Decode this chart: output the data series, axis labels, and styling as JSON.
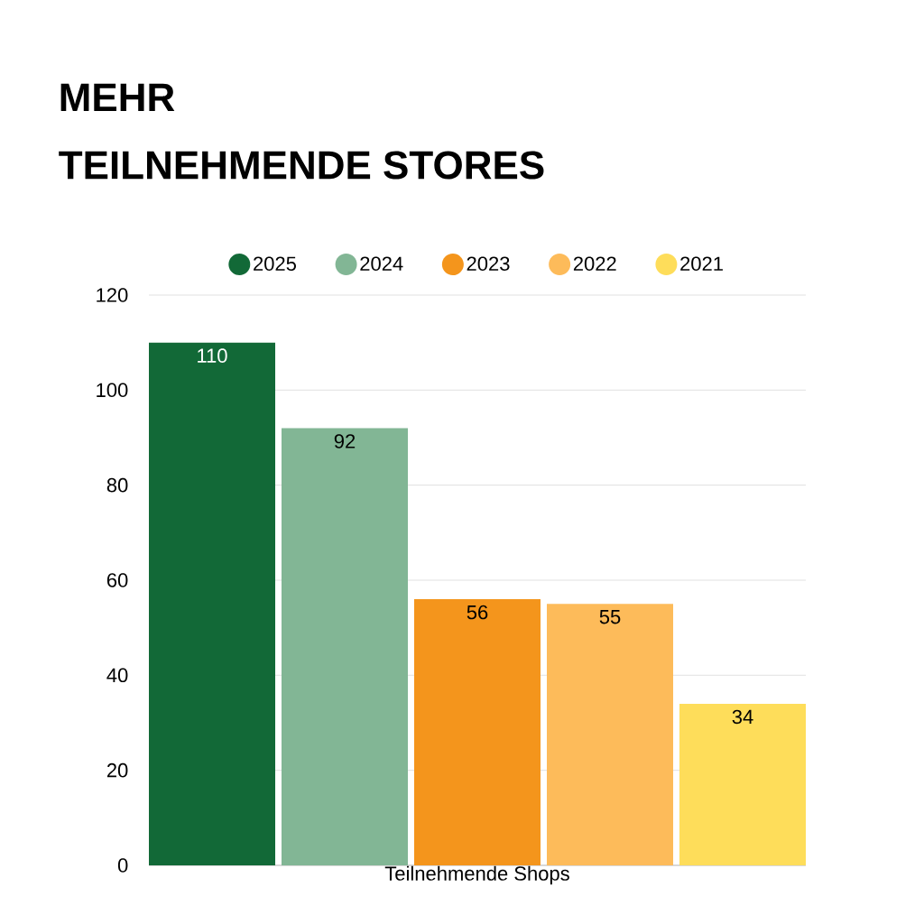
{
  "chart_data": {
    "type": "bar",
    "title": "MEHR",
    "subtitle": "TEILNEHMENDE STORES",
    "categories": [
      "Teilnehmende Shops"
    ],
    "series": [
      {
        "name": "2025",
        "color": "#126937",
        "values": [
          110
        ]
      },
      {
        "name": "2024",
        "color": "#82b695",
        "values": [
          92
        ]
      },
      {
        "name": "2023",
        "color": "#f4951c",
        "values": [
          56
        ]
      },
      {
        "name": "2022",
        "color": "#fdbb5a",
        "values": [
          55
        ]
      },
      {
        "name": "2021",
        "color": "#fedd5a",
        "values": [
          34
        ]
      }
    ],
    "ylim": [
      0,
      120
    ],
    "yticks": [
      0,
      20,
      40,
      60,
      80,
      100,
      120
    ],
    "grid": "y",
    "legend": "top",
    "data_labels": true
  }
}
